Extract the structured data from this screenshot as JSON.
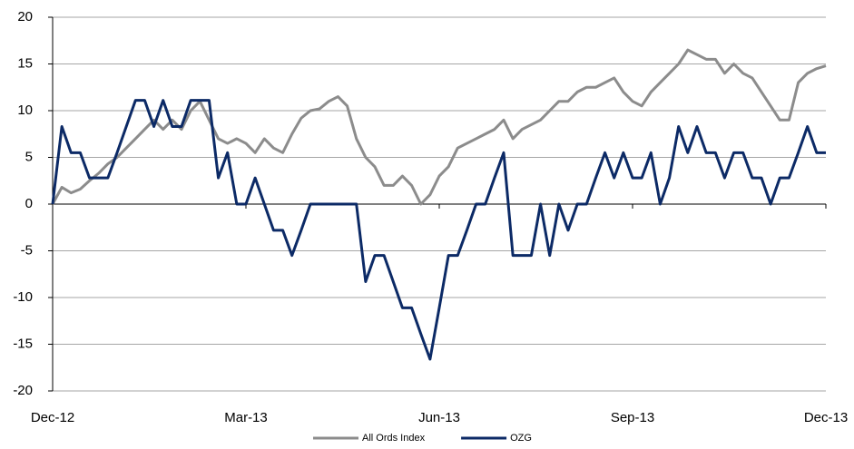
{
  "chart_data": {
    "type": "line",
    "categories": [
      "Dec-12",
      null,
      null,
      null,
      null,
      null,
      null,
      null,
      null,
      null,
      null,
      null,
      null,
      null,
      null,
      null,
      null,
      null,
      null,
      null,
      null,
      "Mar-13",
      null,
      null,
      null,
      null,
      null,
      null,
      null,
      null,
      null,
      null,
      null,
      null,
      null,
      null,
      null,
      null,
      null,
      null,
      null,
      null,
      "Jun-13",
      null,
      null,
      null,
      null,
      null,
      null,
      null,
      null,
      null,
      null,
      null,
      null,
      null,
      null,
      null,
      null,
      null,
      null,
      null,
      null,
      "Sep-13",
      null,
      null,
      null,
      null,
      null,
      null,
      null,
      null,
      null,
      null,
      null,
      null,
      null,
      null,
      null,
      null,
      null,
      null,
      null,
      null,
      "Dec-13"
    ],
    "series": [
      {
        "name": "All Ords Index",
        "color": "#8c8c8c",
        "values": [
          0,
          1.8,
          1.2,
          1.6,
          2.5,
          3.3,
          4.3,
          5,
          6,
          7,
          8,
          9,
          8,
          9,
          8,
          10,
          11,
          9,
          7,
          6.5,
          7,
          6.5,
          5.5,
          7,
          6,
          5.5,
          7.5,
          9.2,
          10,
          10.2,
          11,
          11.5,
          10.5,
          7,
          5,
          4,
          2,
          2,
          3,
          2,
          0,
          1,
          3,
          4,
          6,
          6.5,
          7,
          7.5,
          8,
          9,
          7,
          8,
          8.5,
          9,
          10,
          11,
          11,
          12,
          12.5,
          12.5,
          13,
          13.5,
          12,
          11,
          10.5,
          12,
          13,
          14,
          15,
          16.5,
          16,
          15.5,
          15.5,
          14,
          15,
          14,
          13.5,
          12,
          10.5,
          9,
          9,
          13,
          14,
          14.5,
          14.8
        ]
      },
      {
        "name": "OZG",
        "color": "#0c2a66",
        "values": [
          0,
          8.3,
          5.5,
          5.5,
          2.8,
          2.8,
          2.8,
          5.5,
          8.3,
          11.1,
          11.1,
          8.3,
          11.1,
          8.3,
          8.3,
          11.1,
          11.1,
          11.1,
          2.8,
          5.5,
          0,
          0,
          2.8,
          0,
          -2.8,
          -2.8,
          -5.5,
          -2.8,
          0,
          0,
          0,
          0,
          0,
          0,
          -8.3,
          -5.5,
          -5.5,
          -8.3,
          -11.1,
          -11.1,
          -13.9,
          -16.6,
          -11.1,
          -5.5,
          -5.5,
          -2.8,
          0,
          0,
          2.8,
          5.5,
          -5.5,
          -5.5,
          -5.5,
          0,
          -5.5,
          0,
          -2.8,
          0,
          0,
          2.8,
          5.5,
          2.8,
          5.5,
          2.8,
          2.8,
          5.5,
          0,
          2.8,
          8.3,
          5.5,
          8.3,
          5.5,
          5.5,
          2.8,
          5.5,
          5.5,
          2.8,
          2.8,
          0,
          2.8,
          2.8,
          5.5,
          8.3,
          5.5,
          5.5
        ]
      }
    ],
    "ylim": [
      -20,
      20
    ],
    "yticks": [
      -20,
      -15,
      -10,
      -5,
      0,
      5,
      10,
      15,
      20
    ],
    "grid": true,
    "legend": "bottom"
  }
}
